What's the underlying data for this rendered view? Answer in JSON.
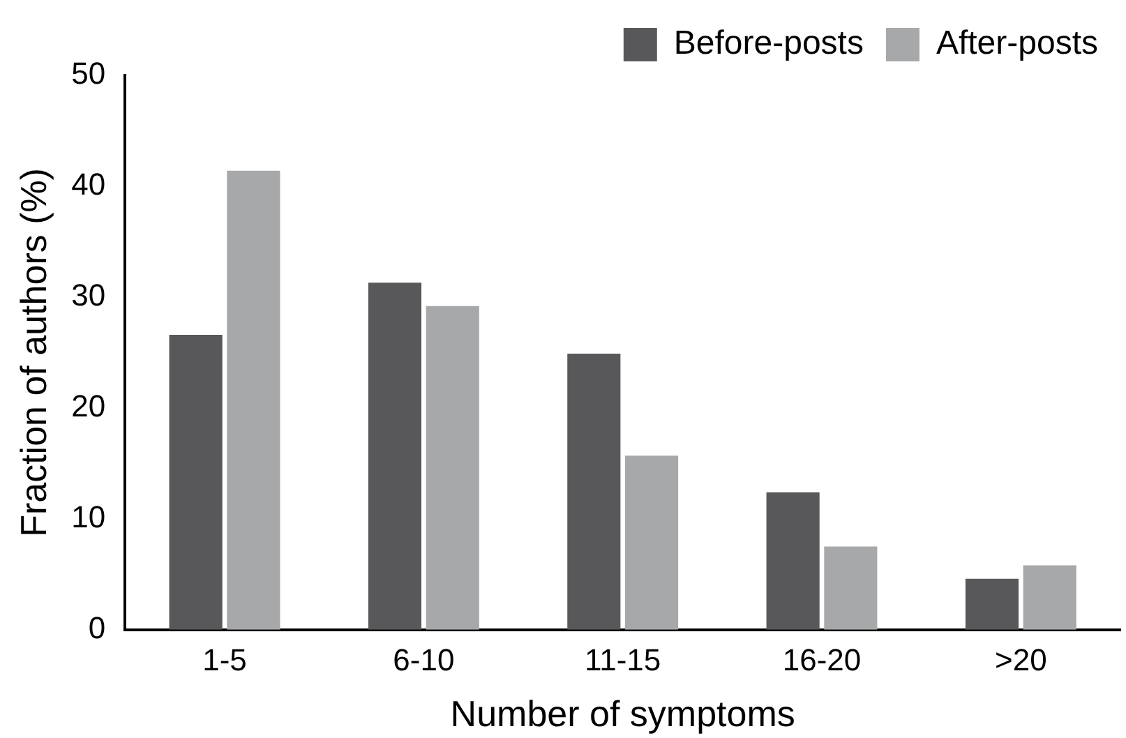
{
  "chart_data": {
    "type": "bar",
    "xlabel": "Number of symptoms",
    "ylabel": "Fraction of authors (%)",
    "categories": [
      "1-5",
      "6-10",
      "11-15",
      "16-20",
      ">20"
    ],
    "series": [
      {
        "name": "Before-posts",
        "color": "#58585a",
        "values": [
          26.6,
          31.3,
          24.9,
          12.4,
          4.6
        ]
      },
      {
        "name": "After-posts",
        "color": "#a7a8aa",
        "values": [
          41.4,
          29.2,
          15.7,
          7.5,
          5.8
        ]
      }
    ],
    "ylim": [
      0,
      50
    ],
    "yticks": [
      0,
      10,
      20,
      30,
      40,
      50
    ],
    "grid": false,
    "legend": "top right"
  }
}
